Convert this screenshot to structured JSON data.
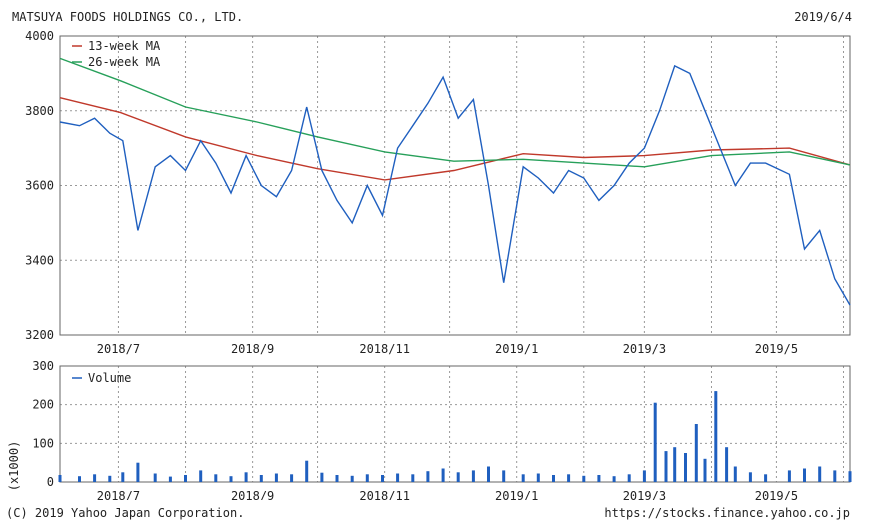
{
  "header": {
    "company": "MATSUYA FOODS HOLDINGS CO., LTD.",
    "date": "2019/6/4"
  },
  "footer": {
    "copyright": "(C) 2019 Yahoo Japan Corporation.",
    "url": "https://stocks.finance.yahoo.co.jp"
  },
  "colors": {
    "price": "#1f5fbf",
    "ma13": "#c0392b",
    "ma26": "#27a05a",
    "volume": "#1f5fbf",
    "grid": "#999999"
  },
  "chart_data": [
    {
      "type": "line",
      "title": "",
      "ylim": [
        3200,
        4000
      ],
      "yticks": [
        3200,
        3400,
        3600,
        3800,
        4000
      ],
      "xticks": [
        "2018/7",
        "2018/9",
        "2018/11",
        "2019/1",
        "2019/3",
        "2019/5"
      ],
      "xlim": [
        "2018-06-04",
        "2019-06-04"
      ],
      "legend_position": "top-left",
      "grid": true,
      "series": [
        {
          "name": "13-week MA",
          "x": [
            "2018-06-04",
            "2018-07-02",
            "2018-08-01",
            "2018-09-03",
            "2018-10-01",
            "2018-11-01",
            "2018-12-03",
            "2019-01-04",
            "2019-02-01",
            "2019-03-01",
            "2019-04-01",
            "2019-05-07",
            "2019-06-04"
          ],
          "values": [
            3835,
            3795,
            3730,
            3680,
            3645,
            3615,
            3640,
            3685,
            3675,
            3680,
            3695,
            3700,
            3655
          ]
        },
        {
          "name": "26-week MA",
          "x": [
            "2018-06-04",
            "2018-07-02",
            "2018-08-01",
            "2018-09-03",
            "2018-10-01",
            "2018-11-01",
            "2018-12-03",
            "2019-01-04",
            "2019-02-01",
            "2019-03-01",
            "2019-04-01",
            "2019-05-07",
            "2019-06-04"
          ],
          "values": [
            3940,
            3880,
            3810,
            3770,
            3730,
            3690,
            3665,
            3670,
            3660,
            3650,
            3680,
            3690,
            3655
          ]
        },
        {
          "name": "",
          "x": [
            "2018-06-04",
            "2018-06-13",
            "2018-06-20",
            "2018-06-27",
            "2018-07-03",
            "2018-07-10",
            "2018-07-18",
            "2018-07-25",
            "2018-08-01",
            "2018-08-08",
            "2018-08-15",
            "2018-08-22",
            "2018-08-29",
            "2018-09-05",
            "2018-09-12",
            "2018-09-19",
            "2018-09-26",
            "2018-10-03",
            "2018-10-10",
            "2018-10-17",
            "2018-10-24",
            "2018-10-31",
            "2018-11-07",
            "2018-11-14",
            "2018-11-21",
            "2018-11-28",
            "2018-12-05",
            "2018-12-12",
            "2018-12-19",
            "2018-12-26",
            "2019-01-04",
            "2019-01-11",
            "2019-01-18",
            "2019-01-25",
            "2019-02-01",
            "2019-02-08",
            "2019-02-15",
            "2019-02-22",
            "2019-03-01",
            "2019-03-08",
            "2019-03-15",
            "2019-03-22",
            "2019-03-29",
            "2019-04-05",
            "2019-04-12",
            "2019-04-19",
            "2019-04-26",
            "2019-05-07",
            "2019-05-14",
            "2019-05-21",
            "2019-05-28",
            "2019-06-04"
          ],
          "values": [
            3770,
            3760,
            3780,
            3740,
            3720,
            3480,
            3650,
            3680,
            3640,
            3720,
            3660,
            3580,
            3680,
            3600,
            3570,
            3640,
            3810,
            3640,
            3560,
            3500,
            3600,
            3520,
            3700,
            3760,
            3820,
            3890,
            3780,
            3830,
            3600,
            3340,
            3650,
            3620,
            3580,
            3640,
            3620,
            3560,
            3600,
            3660,
            3700,
            3800,
            3920,
            3900,
            3800,
            3700,
            3600,
            3660,
            3660,
            3630,
            3430,
            3480,
            3350,
            3280
          ]
        }
      ]
    },
    {
      "type": "bar",
      "title": "",
      "ylabel": "(x1000)",
      "ylim": [
        0,
        300
      ],
      "yticks": [
        0,
        100,
        200,
        300
      ],
      "xticks": [
        "2018/7",
        "2018/9",
        "2018/11",
        "2019/1",
        "2019/3",
        "2019/5"
      ],
      "legend_position": "top-left",
      "grid": true,
      "series": [
        {
          "name": "Volume",
          "x": [
            "2018-06-04",
            "2018-06-13",
            "2018-06-20",
            "2018-06-27",
            "2018-07-03",
            "2018-07-10",
            "2018-07-18",
            "2018-07-25",
            "2018-08-01",
            "2018-08-08",
            "2018-08-15",
            "2018-08-22",
            "2018-08-29",
            "2018-09-05",
            "2018-09-12",
            "2018-09-19",
            "2018-09-26",
            "2018-10-03",
            "2018-10-10",
            "2018-10-17",
            "2018-10-24",
            "2018-10-31",
            "2018-11-07",
            "2018-11-14",
            "2018-11-21",
            "2018-11-28",
            "2018-12-05",
            "2018-12-12",
            "2018-12-19",
            "2018-12-26",
            "2019-01-04",
            "2019-01-11",
            "2019-01-18",
            "2019-01-25",
            "2019-02-01",
            "2019-02-08",
            "2019-02-15",
            "2019-02-22",
            "2019-03-01",
            "2019-03-06",
            "2019-03-11",
            "2019-03-15",
            "2019-03-20",
            "2019-03-25",
            "2019-03-29",
            "2019-04-03",
            "2019-04-08",
            "2019-04-12",
            "2019-04-19",
            "2019-04-26",
            "2019-05-07",
            "2019-05-14",
            "2019-05-21",
            "2019-05-28",
            "2019-06-04"
          ],
          "values": [
            18,
            15,
            20,
            16,
            25,
            50,
            22,
            14,
            18,
            30,
            20,
            15,
            25,
            18,
            22,
            20,
            55,
            24,
            18,
            16,
            20,
            18,
            22,
            20,
            28,
            35,
            25,
            30,
            40,
            30,
            20,
            22,
            18,
            20,
            16,
            18,
            15,
            20,
            30,
            205,
            80,
            90,
            75,
            150,
            60,
            235,
            90,
            40,
            25,
            20,
            30,
            35,
            40,
            30,
            28
          ]
        }
      ]
    }
  ]
}
